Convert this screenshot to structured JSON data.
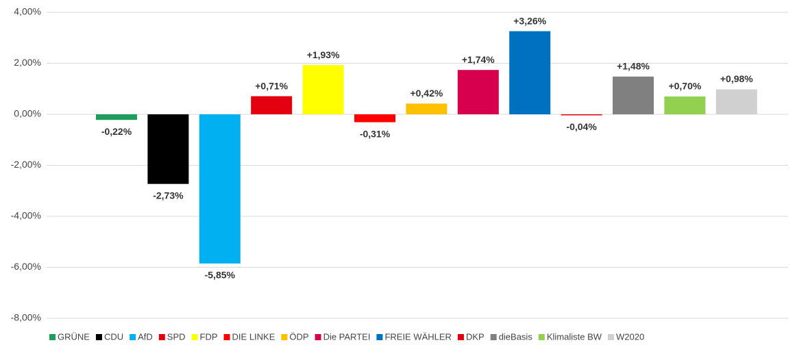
{
  "chart_data": {
    "type": "bar",
    "series": [
      {
        "name": "GRÜNE",
        "color": "#1f9d5c",
        "values": [
          -0.22
        ],
        "value_labels": [
          "-0,22%"
        ]
      },
      {
        "name": "CDU",
        "color": "#000000",
        "values": [
          -2.73
        ],
        "value_labels": [
          "-2,73%"
        ]
      },
      {
        "name": "AfD",
        "color": "#00b0f0",
        "values": [
          -5.85
        ],
        "value_labels": [
          "-5,85%"
        ]
      },
      {
        "name": "SPD",
        "color": "#e3000f",
        "values": [
          0.71
        ],
        "value_labels": [
          "+0,71%"
        ]
      },
      {
        "name": "FDP",
        "color": "#ffff00",
        "values": [
          1.93
        ],
        "value_labels": [
          "+1,93%"
        ]
      },
      {
        "name": "DIE LINKE",
        "color": "#ff0000",
        "values": [
          -0.31
        ],
        "value_labels": [
          "-0,31%"
        ]
      },
      {
        "name": "ÖDP",
        "color": "#ffc000",
        "values": [
          0.42
        ],
        "value_labels": [
          "+0,42%"
        ]
      },
      {
        "name": "Die PARTEI",
        "color": "#d6004f",
        "values": [
          1.74
        ],
        "value_labels": [
          "+1,74%"
        ]
      },
      {
        "name": "FREIE WÄHLER",
        "color": "#0070c0",
        "values": [
          3.26
        ],
        "value_labels": [
          "+3,26%"
        ]
      },
      {
        "name": "DKP",
        "color": "#e3000f",
        "values": [
          -0.04
        ],
        "value_labels": [
          "-0,04%"
        ]
      },
      {
        "name": "dieBasis",
        "color": "#808080",
        "values": [
          1.48
        ],
        "value_labels": [
          "+1,48%"
        ]
      },
      {
        "name": "Klimaliste BW",
        "color": "#92d050",
        "values": [
          0.7
        ],
        "value_labels": [
          "+0,70%"
        ]
      },
      {
        "name": "W2020",
        "color": "#d0d0d0",
        "values": [
          0.98
        ],
        "value_labels": [
          "+0,98%"
        ]
      }
    ],
    "ylim": [
      -8,
      4
    ],
    "yticks": [
      {
        "value": -8,
        "label": "-8,00%"
      },
      {
        "value": -6,
        "label": "-6,00%"
      },
      {
        "value": -4,
        "label": "-4,00%"
      },
      {
        "value": -2,
        "label": "-2,00%"
      },
      {
        "value": 0,
        "label": "0,00%"
      },
      {
        "value": 2,
        "label": "2,00%"
      },
      {
        "value": 4,
        "label": "4,00%"
      }
    ],
    "grid": true,
    "legend": "bottom"
  }
}
